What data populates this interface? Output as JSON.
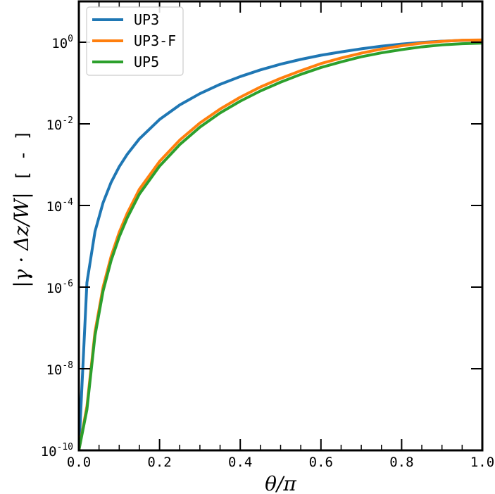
{
  "chart_data": {
    "type": "line",
    "xlabel": "θ/π",
    "ylabel": "|γ · Δz/W|",
    "ylabel_unit": "[ - ]",
    "xlim": [
      0.0,
      1.0
    ],
    "ylim": [
      1e-10,
      10
    ],
    "yscale": "log",
    "x_ticks": [
      0.0,
      0.2,
      0.4,
      0.6,
      0.8,
      1.0
    ],
    "x_tick_labels": [
      "0.0",
      "0.2",
      "0.4",
      "0.6",
      "0.8",
      "1.0"
    ],
    "y_ticks": [
      1e-10,
      1e-08,
      1e-06,
      0.0001,
      0.01,
      1
    ],
    "y_tick_labels": [
      {
        "base": "10",
        "exp": "-10"
      },
      {
        "base": "10",
        "exp": "-8"
      },
      {
        "base": "10",
        "exp": "-6"
      },
      {
        "base": "10",
        "exp": "-4"
      },
      {
        "base": "10",
        "exp": "-2"
      },
      {
        "base": "10",
        "exp": "0"
      }
    ],
    "grid": false,
    "legend_position": "top-left",
    "series": [
      {
        "name": "UP3",
        "color": "#1f77b4",
        "x": [
          0.0,
          0.02,
          0.04,
          0.06,
          0.08,
          0.1,
          0.12,
          0.15,
          0.2,
          0.25,
          0.3,
          0.35,
          0.4,
          0.45,
          0.5,
          0.55,
          0.6,
          0.65,
          0.7,
          0.75,
          0.8,
          0.85,
          0.9,
          0.95,
          1.0
        ],
        "y": [
          1e-10,
          1.3e-06,
          2.3e-05,
          0.000117,
          0.00037,
          0.00089,
          0.0018,
          0.0043,
          0.0128,
          0.029,
          0.055,
          0.093,
          0.144,
          0.21,
          0.29,
          0.38,
          0.48,
          0.58,
          0.69,
          0.8,
          0.9,
          0.99,
          1.06,
          1.11,
          1.125
        ]
      },
      {
        "name": "UP3-F",
        "color": "#ff7f0e",
        "x": [
          0.0,
          0.02,
          0.04,
          0.06,
          0.08,
          0.1,
          0.12,
          0.15,
          0.2,
          0.25,
          0.3,
          0.35,
          0.4,
          0.45,
          0.5,
          0.55,
          0.6,
          0.65,
          0.7,
          0.75,
          0.8,
          0.85,
          0.9,
          0.95,
          1.0
        ],
        "y": [
          1e-10,
          1.2e-09,
          8e-08,
          1e-06,
          5.7e-06,
          2.2e-05,
          6.5e-05,
          0.00025,
          0.0012,
          0.004,
          0.0105,
          0.023,
          0.045,
          0.08,
          0.13,
          0.2,
          0.3,
          0.41,
          0.54,
          0.68,
          0.82,
          0.95,
          1.05,
          1.12,
          1.14
        ]
      },
      {
        "name": "UP5",
        "color": "#2ca02c",
        "x": [
          0.0,
          0.02,
          0.04,
          0.06,
          0.08,
          0.1,
          0.12,
          0.15,
          0.2,
          0.25,
          0.3,
          0.35,
          0.4,
          0.45,
          0.5,
          0.55,
          0.6,
          0.65,
          0.7,
          0.75,
          0.8,
          0.85,
          0.9,
          0.95,
          1.0
        ],
        "y": [
          1e-10,
          1e-09,
          6.5e-08,
          8e-07,
          4.5e-06,
          1.7e-05,
          5e-05,
          0.00019,
          0.00092,
          0.0031,
          0.0083,
          0.0185,
          0.036,
          0.064,
          0.105,
          0.163,
          0.24,
          0.33,
          0.44,
          0.55,
          0.66,
          0.77,
          0.86,
          0.92,
          0.95
        ]
      }
    ]
  }
}
